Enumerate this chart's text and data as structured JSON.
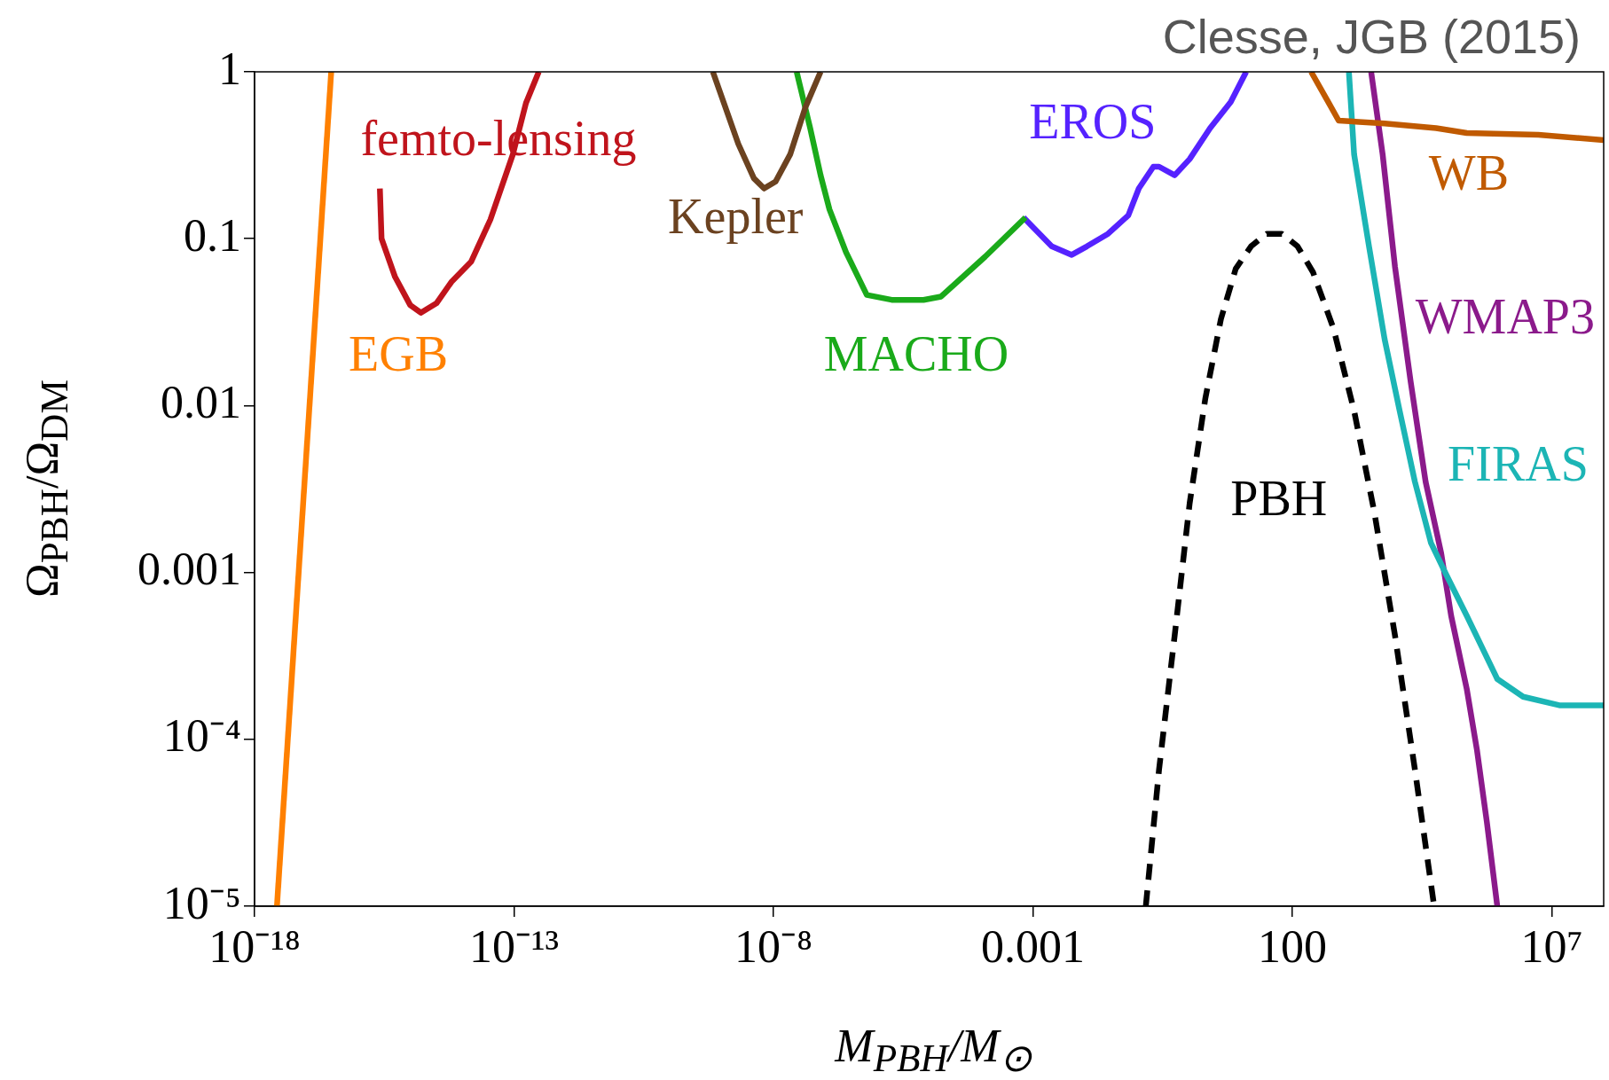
{
  "chart_data": {
    "type": "line",
    "xlabel": "M$_{PBH}$/M$_{⊙}$",
    "ylabel": "Ω$_{PBH}$/Ω$_{DM}$",
    "annotations": [
      "Clesse, JGB (2015)"
    ],
    "log": "xy",
    "grid": false,
    "legend": false,
    "marker": "none",
    "xlim": [
      1e-18,
      100000000.0
    ],
    "xticks": [
      {
        "value": 1e-18,
        "label": "10⁻¹⁸"
      },
      {
        "value": 1e-13,
        "label": "10⁻¹³"
      },
      {
        "value": 1e-08,
        "label": "10⁻⁸"
      },
      0.001,
      100,
      {
        "value": 10000000.0,
        "label": "10⁷"
      }
    ],
    "ylim": [
      1e-05,
      1
    ],
    "yticks": [
      {
        "value": 1e-05,
        "label": "10⁻⁵"
      },
      {
        "value": 0.0001,
        "label": "10⁻⁴"
      },
      0.001,
      0.01,
      0.1,
      1
    ],
    "series": [
      {
        "name": "EGB",
        "color": "#ff8000",
        "x": [
          2.7e-18,
          3e-17
        ],
        "values": [
          1e-05,
          1
        ]
      },
      {
        "name": "femto-lensing",
        "color": "#c0141c",
        "x": [
          2.6e-16,
          2.8e-16,
          5.1e-16,
          1e-15,
          1.6e-15,
          3.2e-15,
          6.2e-15,
          1.5e-14,
          3.5e-14,
          9.5e-14,
          1.7e-13,
          3e-13
        ],
        "values": [
          0.2,
          0.1,
          0.059,
          0.04,
          0.036,
          0.041,
          0.055,
          0.073,
          0.13,
          0.32,
          0.65,
          1
        ]
      },
      {
        "name": "Kepler",
        "color": "#6b4220",
        "x": [
          6.8e-10,
          2.1e-09,
          4.2e-09,
          6.6e-09,
          1.1e-08,
          2.1e-08,
          4.1e-08,
          8.1e-08
        ],
        "values": [
          1,
          0.37,
          0.23,
          0.2,
          0.22,
          0.32,
          0.61,
          1
        ]
      },
      {
        "name": "MACHO",
        "color": "#1aaa1a",
        "x": [
          2.8e-08,
          5.1e-08,
          8.1e-08,
          1.2e-07,
          2.5e-07,
          6.3e-07,
          1.9e-06,
          7.8e-06,
          1.7e-05,
          0.00012,
          0.00072
        ],
        "values": [
          1,
          0.46,
          0.24,
          0.15,
          0.083,
          0.046,
          0.043,
          0.043,
          0.045,
          0.078,
          0.134
        ]
      },
      {
        "name": "EROS",
        "color": "#5522ff",
        "x": [
          0.00066,
          0.0023,
          0.0056,
          0.011,
          0.028,
          0.069,
          0.11,
          0.21,
          0.27,
          0.54,
          1.05,
          2.6,
          6.5,
          12.9
        ],
        "values": [
          0.134,
          0.09,
          0.08,
          0.09,
          0.107,
          0.138,
          0.2,
          0.27,
          0.27,
          0.24,
          0.3,
          0.46,
          0.66,
          1
        ]
      },
      {
        "name": "WB",
        "color": "#c05a00",
        "x": [
          230,
          490,
          780,
          6000,
          59000,
          230000,
          5500000,
          100000000
        ],
        "values": [
          1,
          0.66,
          0.51,
          0.49,
          0.46,
          0.43,
          0.42,
          0.39
        ]
      },
      {
        "name": "FIRAS",
        "color": "#1cb5b5",
        "x": [
          1230,
          1550,
          3000,
          6000,
          11700,
          23000,
          47000,
          91000,
          230000,
          890000,
          2800000,
          14000000,
          100000000
        ],
        "values": [
          1,
          0.32,
          0.09,
          0.025,
          0.0093,
          0.0035,
          0.0015,
          0.00098,
          0.00055,
          0.00023,
          0.00018,
          0.00016,
          0.00016
        ]
      },
      {
        "name": "WMAP3",
        "color": "#8b1a8b",
        "x": [
          3300,
          5500,
          9500,
          19000,
          37000,
          74000,
          115000,
          230000,
          360000,
          560000,
          890000
        ],
        "values": [
          1,
          0.32,
          0.068,
          0.014,
          0.0035,
          0.0013,
          0.00055,
          0.0002,
          8.7e-05,
          3.2e-05,
          1e-05
        ]
      },
      {
        "name": "PBH",
        "color": "#000000",
        "line_style": "dashed",
        "x": [
          0.15,
          0.27,
          0.54,
          1.05,
          2.1,
          4.2,
          8.1,
          16,
          32,
          63,
          126,
          250,
          620,
          1550,
          3800,
          9500,
          23000,
          54000
        ],
        "values": [
          1e-05,
          6.6e-05,
          0.00042,
          0.0026,
          0.011,
          0.033,
          0.066,
          0.09,
          0.107,
          0.107,
          0.09,
          0.063,
          0.029,
          0.0093,
          0.0023,
          0.00042,
          6.6e-05,
          1e-05
        ]
      }
    ]
  }
}
